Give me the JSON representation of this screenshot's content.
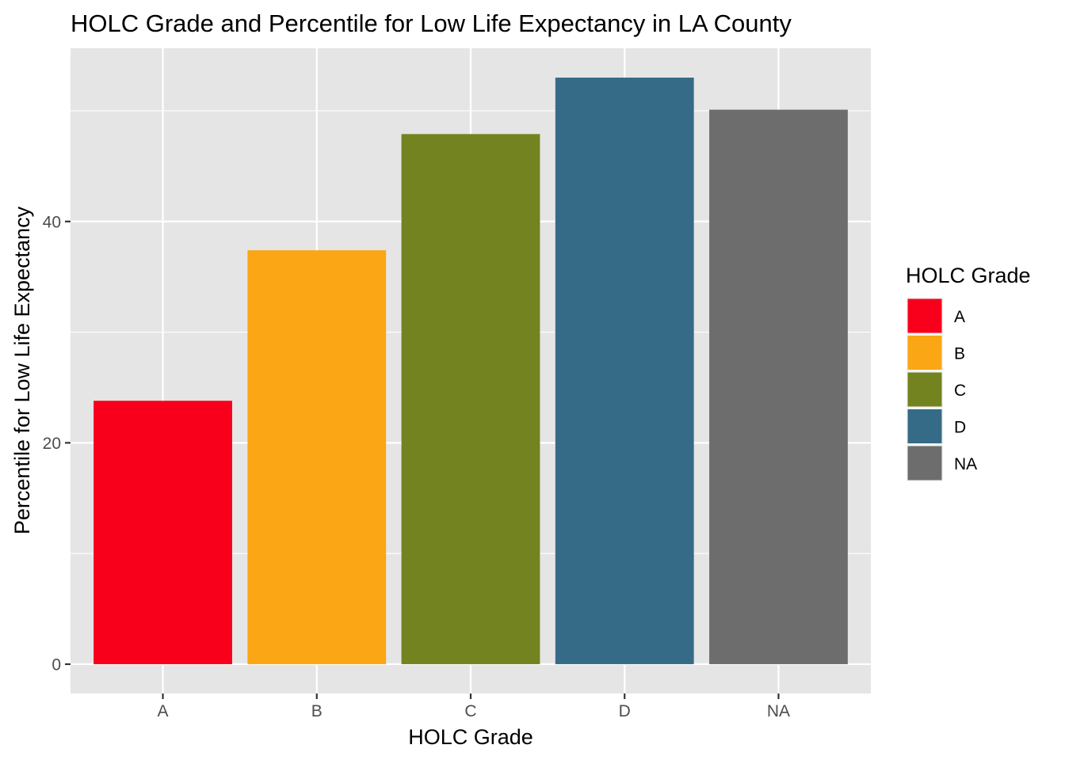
{
  "chart_data": {
    "type": "bar",
    "title": "HOLC Grade and Percentile for Low Life Expectancy in LA County",
    "xlabel": "HOLC Grade",
    "ylabel": "Percentile for Low Life Expectancy",
    "categories": [
      "A",
      "B",
      "C",
      "D",
      "NA"
    ],
    "values": [
      23.8,
      37.4,
      47.9,
      53.0,
      50.1
    ],
    "ylim": [
      -2.65,
      55.65
    ],
    "yticks": [
      0,
      20,
      40
    ],
    "grid": true,
    "background": "#e5e5e5",
    "colors": {
      "A": "#f8001c",
      "B": "#fba614",
      "C": "#73831f",
      "D": "#356b86",
      "NA": "#6d6d6d"
    },
    "legend": {
      "title": "HOLC Grade",
      "position": "right",
      "entries": [
        "A",
        "B",
        "C",
        "D",
        "NA"
      ]
    }
  }
}
